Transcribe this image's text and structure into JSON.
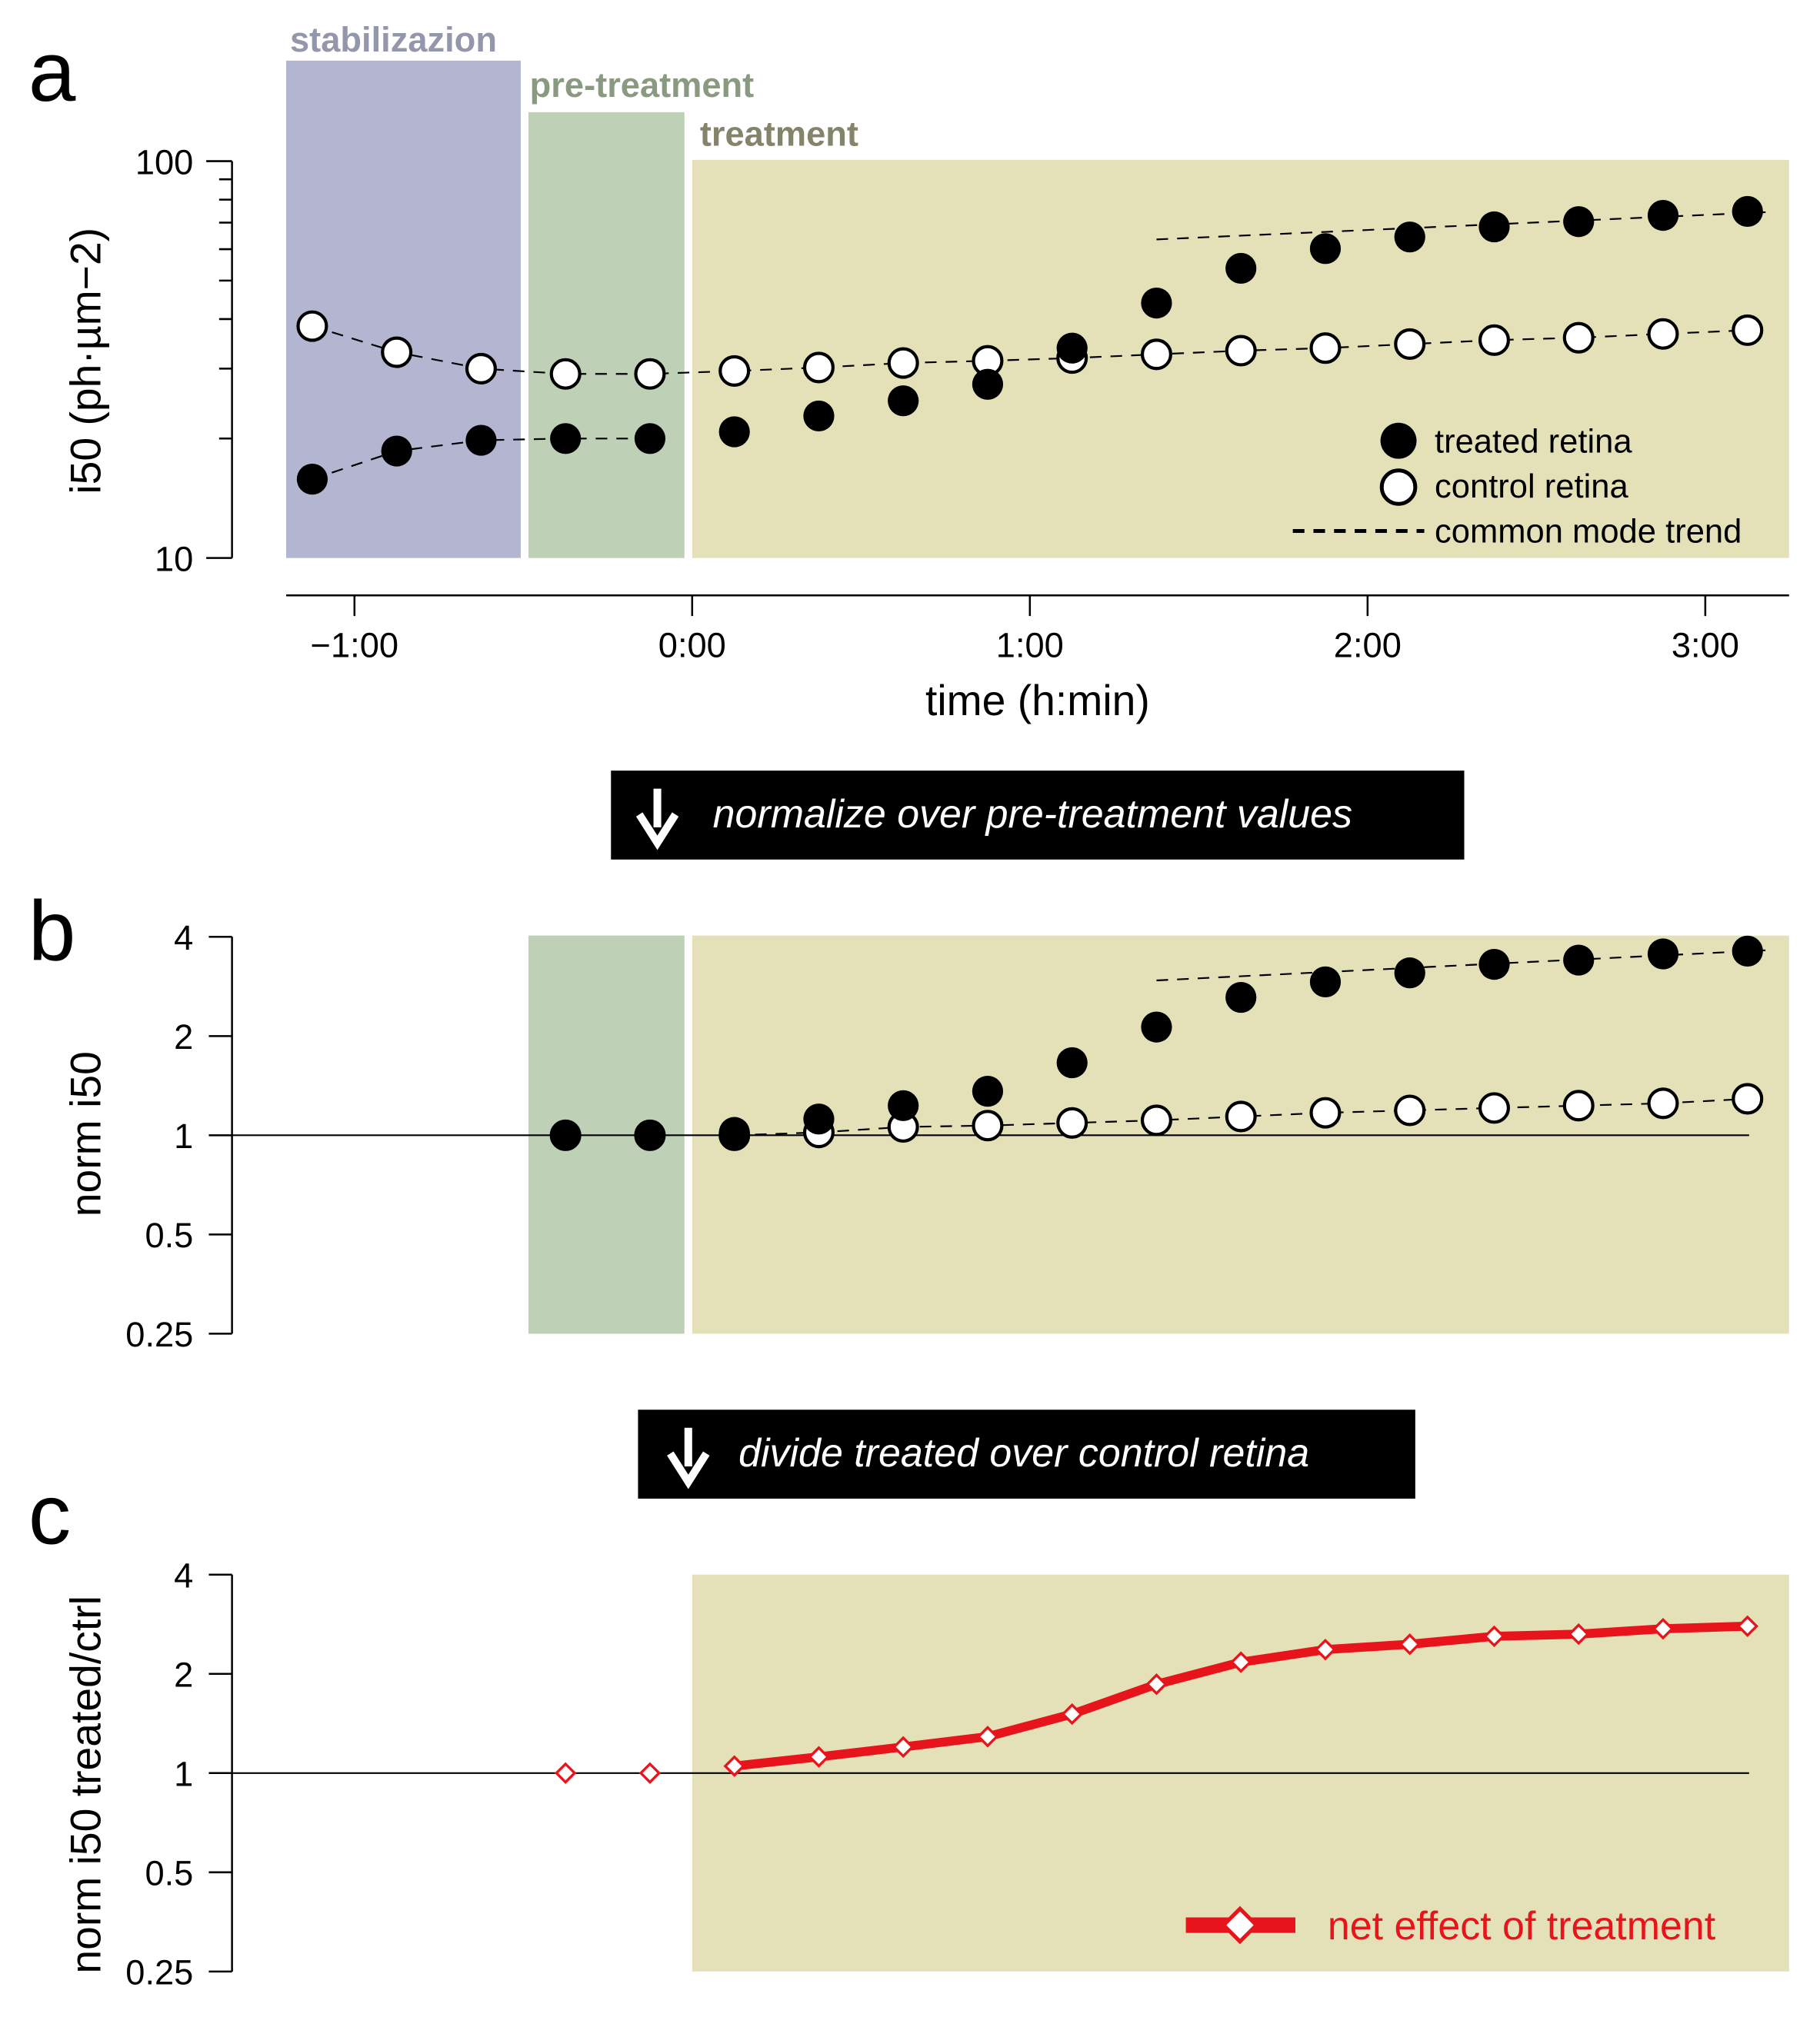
{
  "colors": {
    "stabilization": "#b4b6d1",
    "pretreatment": "#bed0b5",
    "treatment": "#e4e1b8",
    "stab_text": "#9496ab",
    "pre_text": "#8a9a80",
    "treat_text": "#84846a",
    "net": "#e8141b"
  },
  "panels": {
    "a": "a",
    "b": "b",
    "c": "c"
  },
  "sections": {
    "stabilization": "stabilizazion",
    "pretreatment": "pre-treatment",
    "treatment": "treatment"
  },
  "banners": {
    "first": "normalize over pre-treatment values",
    "second": "divide treated over control retina"
  },
  "chart_data": [
    {
      "type": "scatter",
      "panel": "a",
      "xlabel": "time (h:min)",
      "ylabel": "i50 (ph·µm−2)",
      "yscale": "log",
      "ylim": [
        10,
        100
      ],
      "yticks": [
        "100",
        "10"
      ],
      "xticks": [
        "−1:00",
        "0:00",
        "1:00",
        "2:00",
        "3:00"
      ],
      "xtick_values": [
        -60,
        0,
        60,
        120,
        180
      ],
      "x": [
        -67.5,
        -52.5,
        -37.5,
        -22.5,
        -7.5,
        7.5,
        22.5,
        37.5,
        52.5,
        67.5,
        82.5,
        97.5,
        112.5,
        127.5,
        142.5,
        157.5,
        172.5,
        187.5
      ],
      "series": [
        {
          "name": "treated retina",
          "values": [
            15.8,
            18.6,
            19.8,
            20.0,
            20.0,
            20.8,
            22.8,
            24.9,
            27.4,
            33.8,
            43.9,
            53.7,
            60.2,
            64.4,
            68.3,
            70.4,
            73.0,
            74.7
          ]
        },
        {
          "name": "control retina",
          "values": [
            38.4,
            33.0,
            30.0,
            29.1,
            29.1,
            29.6,
            30.2,
            31.0,
            31.4,
            31.9,
            32.6,
            33.3,
            33.8,
            34.6,
            35.4,
            35.9,
            36.7,
            37.5
          ]
        }
      ],
      "trend": {
        "name": "common mode trend",
        "x": [
          82.5,
          192
        ],
        "treated": [
          63.5,
          74.5
        ]
      },
      "legend": [
        "treated retina",
        "control retina",
        "common mode trend"
      ],
      "legend_position": "bottom-right"
    },
    {
      "type": "scatter",
      "panel": "b",
      "ylabel": "norm i50",
      "yscale": "log2",
      "ylim": [
        0.25,
        4
      ],
      "yticks": [
        "4",
        "2",
        "1",
        "0.5",
        "0.25"
      ],
      "ytick_values": [
        4,
        2,
        1,
        0.5,
        0.25
      ],
      "x": [
        -22.5,
        -7.5,
        7.5,
        22.5,
        37.5,
        52.5,
        67.5,
        82.5,
        97.5,
        112.5,
        127.5,
        142.5,
        157.5,
        172.5,
        187.5
      ],
      "series": [
        {
          "name": "treated retina",
          "values": [
            1,
            1,
            1.02,
            1.12,
            1.23,
            1.36,
            1.66,
            2.13,
            2.62,
            2.92,
            3.11,
            3.3,
            3.4,
            3.55,
            3.62
          ]
        },
        {
          "name": "control retina",
          "values": [
            1,
            1,
            1.0,
            1.02,
            1.06,
            1.07,
            1.09,
            1.11,
            1.14,
            1.17,
            1.19,
            1.21,
            1.23,
            1.25,
            1.29
          ]
        }
      ],
      "trend": {
        "x": [
          82.5,
          192
        ],
        "treated": [
          2.95,
          3.65
        ]
      }
    },
    {
      "type": "line",
      "panel": "c",
      "ylabel": "norm i50 treated/ctrl",
      "yscale": "log2",
      "ylim": [
        0.25,
        4
      ],
      "yticks": [
        "4",
        "2",
        "1",
        "0.5",
        "0.25"
      ],
      "ytick_values": [
        4,
        2,
        1,
        0.5,
        0.25
      ],
      "x": [
        -22.5,
        -7.5,
        7.5,
        22.5,
        37.5,
        52.5,
        67.5,
        82.5,
        97.5,
        112.5,
        127.5,
        142.5,
        157.5,
        172.5,
        187.5
      ],
      "series": [
        {
          "name": "net effect of treatment",
          "values": [
            1,
            1,
            1.05,
            1.12,
            1.2,
            1.29,
            1.51,
            1.86,
            2.17,
            2.37,
            2.46,
            2.6,
            2.64,
            2.74,
            2.79
          ]
        }
      ],
      "legend": [
        "net effect of treatment"
      ],
      "legend_position": "bottom-right"
    }
  ]
}
